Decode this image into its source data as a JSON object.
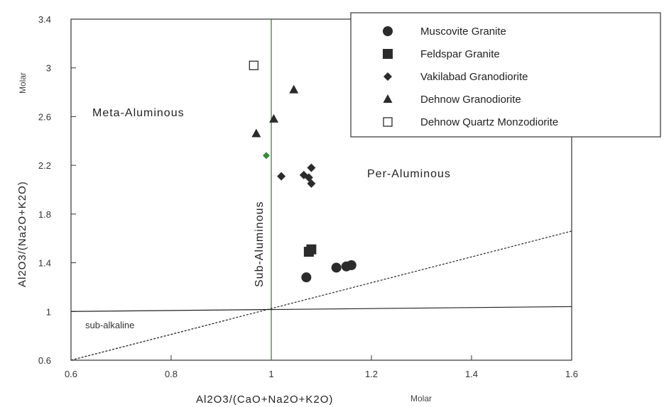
{
  "chart_data": {
    "type": "scatter",
    "xlabel": "Al2O3/(CaO+Na2O+K2O)",
    "xlabel_unit": "Molar",
    "ylabel": "Al2O3/(Na2O+K2O)",
    "ylabel_unit": "Molar",
    "xlim": [
      0.6,
      1.6
    ],
    "ylim": [
      0.6,
      3.4
    ],
    "x_ticks": [
      "0.6",
      "0.8",
      "1",
      "1.2",
      "1.4",
      "1.6"
    ],
    "y_ticks": [
      "0.6",
      "1",
      "1.4",
      "1.8",
      "2.2",
      "2.6",
      "3",
      "3.4"
    ],
    "legend_position": "top-right",
    "region_labels": {
      "meta": "Meta-Aluminous",
      "per": "Per-Aluminous",
      "sub": "Sub-Aluminous",
      "subalkaline": "sub-alkaline"
    },
    "series": [
      {
        "name": "Muscovite Granite",
        "marker": "circle",
        "x": [
          1.07,
          1.13,
          1.15,
          1.16
        ],
        "y": [
          1.28,
          1.36,
          1.37,
          1.38
        ]
      },
      {
        "name": "Feldspar Granite",
        "marker": "square",
        "x": [
          1.075,
          1.08
        ],
        "y": [
          1.49,
          1.51
        ]
      },
      {
        "name": "Vakilabad Granodiorite",
        "marker": "diamond",
        "x": [
          1.02,
          1.065,
          1.08,
          1.08,
          1.075
        ],
        "y": [
          2.11,
          2.12,
          2.18,
          2.05,
          2.1
        ]
      },
      {
        "name": "Dehnow Granodiorite",
        "marker": "triangle",
        "x": [
          0.97,
          1.005,
          1.045
        ],
        "y": [
          2.46,
          2.58,
          2.82
        ]
      },
      {
        "name": "Dehnow Quartz Monzodiorite",
        "marker": "open-square",
        "x": [
          0.965
        ],
        "y": [
          3.02
        ]
      }
    ],
    "extra_points": [
      {
        "x": 0.99,
        "y": 2.28,
        "color": "#3a8a3a"
      }
    ],
    "boundary_lines": [
      {
        "name": "acnk-1",
        "from": [
          1.0,
          0.6
        ],
        "to": [
          1.0,
          3.4
        ],
        "color": "#3f6b3f"
      },
      {
        "name": "ank-1",
        "from": [
          0.6,
          1.0
        ],
        "to": [
          1.6,
          1.04
        ],
        "color": "#222222"
      },
      {
        "name": "diagonal",
        "from": [
          0.6,
          0.6
        ],
        "to": [
          1.6,
          1.66
        ],
        "color": "#222222",
        "dash": true
      }
    ]
  }
}
